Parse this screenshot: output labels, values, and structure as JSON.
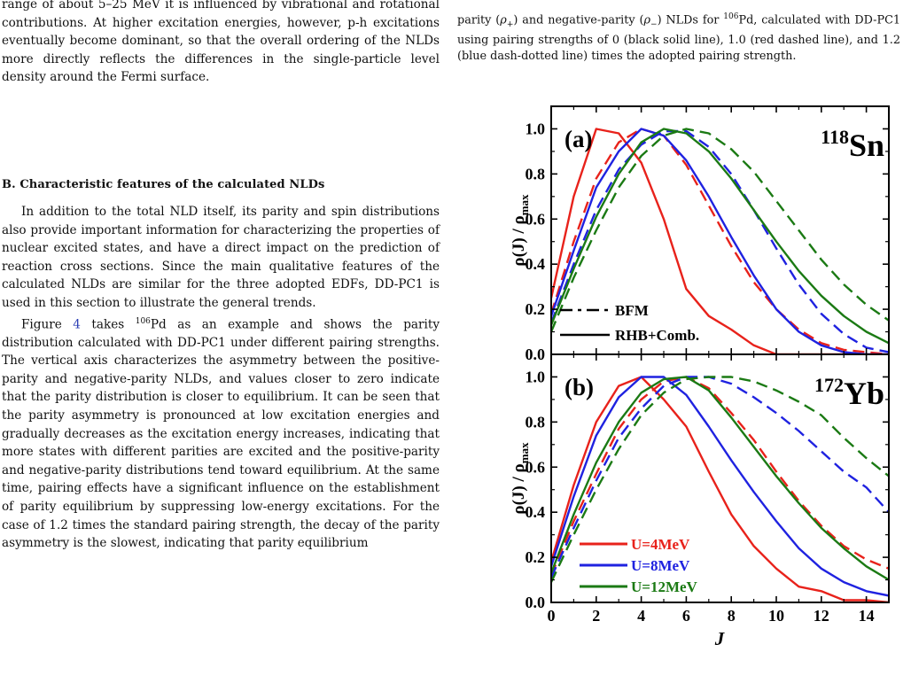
{
  "left_column": {
    "para_intro": {
      "line1": "range of about 5–25 MeV it is influenced by vibrational",
      "rest": "and rotational contributions. At higher excitation energies, however, p-h excitations eventually become dominant, so that the overall ordering of the NLDs more directly reflects the differences in the single-particle level density around the Fermi surface."
    },
    "section_heading": "B.   Characteristic features of the calculated NLDs",
    "para_1": "In addition to the total NLD itself, its parity and spin distributions also provide important information for characterizing the properties of nuclear excited states, and have a direct impact on the prediction of reaction cross sections. Since the main qualitative features of the calculated NLDs are similar for the three adopted EDFs, DD-PC1 is used in this section to illustrate the general trends.",
    "para_2": {
      "before_ref": "Figure ",
      "ref": "4",
      "after_ref": " takes ",
      "mass": "106",
      "element": "Pd",
      "rest": " as an example and shows the parity distribution calculated with DD-PC1 under different pairing strengths. The vertical axis characterizes the asymmetry between the positive-parity and negative-parity NLDs, and values closer to zero indicate that the parity distribution is closer to equilibrium. It can be seen that the parity asymmetry is pronounced at low excitation energies and gradually decreases as the excitation energy increases, indicating that more states with different parities are excited and the positive-parity and negative-parity distributions tend toward equilibrium.  At the same time, pairing effects have a significant influence on the establishment of parity equilibrium by suppressing low-energy excitations.  For the case of 1.2 times the standard pairing strength, the decay of the parity asymmetry is the slowest, indicating that parity equilibrium"
    }
  },
  "caption": {
    "t1": "parity (",
    "rho_plus": "ρ",
    "plus_sub": "+",
    "t2": ") and negative-parity (",
    "rho_minus": "ρ",
    "minus_sub": "−",
    "t3": ") NLDs for ",
    "mass": "106",
    "t4": "Pd, calculated with DD-PC1 using pairing strengths of 0 (black solid line), 1.0 (red dashed line), and 1.2 (blue dash-dotted line) times the adopted pairing strength."
  },
  "figure": {
    "ylabel_main": "ρ(J) / ρ",
    "ylabel_sub": "max",
    "xlabel": "J",
    "colors": {
      "red": "#e8221b",
      "blue": "#1f22e0",
      "green": "#1b7a14"
    },
    "legend_style": {
      "dashed": "BFM",
      "solid": "RHB+Comb."
    },
    "legend_energy": [
      "U=4MeV",
      "U=8MeV",
      "U=12MeV"
    ]
  },
  "chart_data": [
    {
      "type": "line",
      "panel_label": "(a)",
      "nucleus_mass": "118",
      "nucleus_symbol": "Sn",
      "xlabel": "",
      "ylabel": "ρ(J) / ρmax",
      "xlim": [
        0,
        15
      ],
      "ylim": [
        0,
        1.1
      ],
      "x_ticks": [
        0,
        2,
        4,
        6,
        8,
        10,
        12,
        14
      ],
      "y_ticks": [
        "0.0",
        "0.2",
        "0.4",
        "0.6",
        "0.8",
        "1.0"
      ],
      "x": [
        0,
        1,
        2,
        3,
        4,
        5,
        6,
        7,
        8,
        9,
        10,
        11,
        12,
        13,
        14,
        15
      ],
      "series": [
        {
          "name": "U=4MeV",
          "color": "red",
          "style": "solid",
          "values": [
            0.25,
            0.7,
            1.0,
            0.98,
            0.85,
            0.6,
            0.29,
            0.17,
            0.11,
            0.04,
            0.0,
            0.0,
            0.0,
            0.0,
            0.0,
            0.0
          ]
        },
        {
          "name": "U=4MeV",
          "color": "red",
          "style": "dashed",
          "values": [
            0.18,
            0.5,
            0.78,
            0.94,
            1.0,
            0.97,
            0.84,
            0.66,
            0.48,
            0.32,
            0.2,
            0.11,
            0.05,
            0.02,
            0.01,
            0.0
          ]
        },
        {
          "name": "U=8MeV",
          "color": "blue",
          "style": "solid",
          "values": [
            0.17,
            0.46,
            0.74,
            0.9,
            1.0,
            0.97,
            0.86,
            0.7,
            0.52,
            0.35,
            0.2,
            0.1,
            0.04,
            0.01,
            0.0,
            0.0
          ]
        },
        {
          "name": "U=8MeV",
          "color": "blue",
          "style": "dashed",
          "values": [
            0.14,
            0.4,
            0.64,
            0.82,
            0.93,
            0.99,
            0.99,
            0.92,
            0.8,
            0.64,
            0.47,
            0.31,
            0.18,
            0.09,
            0.03,
            0.01
          ]
        },
        {
          "name": "U=12MeV",
          "color": "green",
          "style": "solid",
          "values": [
            0.13,
            0.38,
            0.61,
            0.8,
            0.94,
            1.0,
            0.98,
            0.9,
            0.78,
            0.64,
            0.5,
            0.37,
            0.26,
            0.17,
            0.1,
            0.05
          ]
        },
        {
          "name": "U=12MeV",
          "color": "green",
          "style": "dashed",
          "values": [
            0.1,
            0.34,
            0.55,
            0.74,
            0.88,
            0.97,
            1.0,
            0.98,
            0.91,
            0.81,
            0.68,
            0.55,
            0.42,
            0.31,
            0.22,
            0.15
          ]
        }
      ]
    },
    {
      "type": "line",
      "panel_label": "(b)",
      "nucleus_mass": "172",
      "nucleus_symbol": "Yb",
      "xlabel": "J",
      "ylabel": "ρ(J) / ρmax",
      "xlim": [
        0,
        15
      ],
      "ylim": [
        0,
        1.1
      ],
      "x_ticks": [
        0,
        2,
        4,
        6,
        8,
        10,
        12,
        14
      ],
      "y_ticks": [
        "0.0",
        "0.2",
        "0.4",
        "0.6",
        "0.8",
        "1.0"
      ],
      "x": [
        0,
        1,
        2,
        3,
        4,
        5,
        6,
        7,
        8,
        9,
        10,
        11,
        12,
        13,
        14,
        15
      ],
      "series": [
        {
          "name": "U=4MeV",
          "color": "red",
          "style": "solid",
          "values": [
            0.18,
            0.52,
            0.8,
            0.96,
            1.0,
            0.9,
            0.78,
            0.58,
            0.39,
            0.25,
            0.15,
            0.07,
            0.05,
            0.01,
            0.01,
            0.0
          ]
        },
        {
          "name": "U=4MeV",
          "color": "red",
          "style": "dashed",
          "values": [
            0.12,
            0.36,
            0.57,
            0.77,
            0.9,
            0.98,
            1.0,
            0.95,
            0.84,
            0.72,
            0.58,
            0.45,
            0.34,
            0.25,
            0.19,
            0.15
          ]
        },
        {
          "name": "U=8MeV",
          "color": "blue",
          "style": "solid",
          "values": [
            0.16,
            0.47,
            0.74,
            0.91,
            1.0,
            1.0,
            0.92,
            0.78,
            0.63,
            0.49,
            0.36,
            0.24,
            0.15,
            0.09,
            0.05,
            0.03
          ]
        },
        {
          "name": "U=8MeV",
          "color": "blue",
          "style": "dashed",
          "values": [
            0.11,
            0.33,
            0.54,
            0.73,
            0.86,
            0.96,
            1.0,
            1.0,
            0.97,
            0.91,
            0.84,
            0.76,
            0.67,
            0.58,
            0.51,
            0.4
          ]
        },
        {
          "name": "U=12MeV",
          "color": "green",
          "style": "solid",
          "values": [
            0.13,
            0.39,
            0.62,
            0.8,
            0.93,
            0.99,
            1.0,
            0.94,
            0.82,
            0.69,
            0.56,
            0.44,
            0.33,
            0.24,
            0.16,
            0.1
          ]
        },
        {
          "name": "U=12MeV",
          "color": "green",
          "style": "dashed",
          "values": [
            0.09,
            0.3,
            0.5,
            0.68,
            0.83,
            0.93,
            0.99,
            1.0,
            1.0,
            0.98,
            0.94,
            0.89,
            0.83,
            0.73,
            0.64,
            0.56
          ]
        }
      ]
    }
  ]
}
